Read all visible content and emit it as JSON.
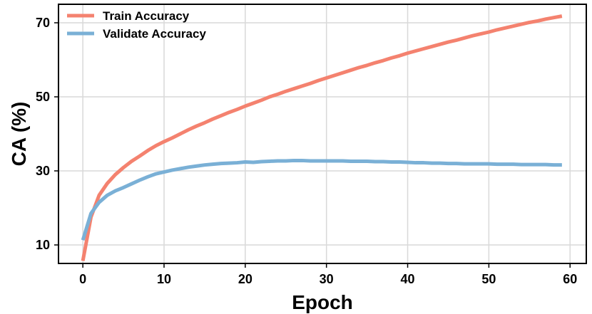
{
  "chart_data": {
    "type": "line",
    "title": "",
    "xlabel": "Epoch",
    "ylabel": "CA (%)",
    "xlim": [
      -3,
      62
    ],
    "ylim": [
      5,
      75
    ],
    "xticks": [
      0,
      10,
      20,
      30,
      40,
      50,
      60
    ],
    "yticks": [
      10,
      30,
      50,
      70
    ],
    "grid": true,
    "legend_position": "top-left",
    "x": [
      0,
      1,
      2,
      3,
      4,
      5,
      6,
      7,
      8,
      9,
      10,
      11,
      12,
      13,
      14,
      15,
      16,
      17,
      18,
      19,
      20,
      21,
      22,
      23,
      24,
      25,
      26,
      27,
      28,
      29,
      30,
      31,
      32,
      33,
      34,
      35,
      36,
      37,
      38,
      39,
      40,
      41,
      42,
      43,
      44,
      45,
      46,
      47,
      48,
      49,
      50,
      51,
      52,
      53,
      54,
      55,
      56,
      57,
      58,
      59
    ],
    "series": [
      {
        "name": "Train Accuracy",
        "color": "#f4826f",
        "values": [
          5.7,
          17.5,
          23.4,
          26.6,
          29.0,
          30.9,
          32.6,
          34.0,
          35.5,
          36.8,
          37.9,
          38.9,
          40.0,
          41.1,
          42.1,
          43.0,
          44.0,
          44.9,
          45.8,
          46.6,
          47.5,
          48.3,
          49.1,
          50.0,
          50.7,
          51.5,
          52.2,
          52.9,
          53.6,
          54.4,
          55.1,
          55.8,
          56.5,
          57.2,
          57.9,
          58.5,
          59.2,
          59.8,
          60.5,
          61.1,
          61.8,
          62.4,
          63.0,
          63.6,
          64.2,
          64.8,
          65.3,
          65.9,
          66.5,
          67.0,
          67.5,
          68.1,
          68.6,
          69.1,
          69.6,
          70.1,
          70.5,
          71.0,
          71.4,
          71.8
        ]
      },
      {
        "name": "Validate Accuracy",
        "color": "#7ab0d6",
        "values": [
          11.3,
          18.5,
          21.5,
          23.4,
          24.6,
          25.5,
          26.5,
          27.5,
          28.4,
          29.2,
          29.7,
          30.2,
          30.6,
          31.0,
          31.3,
          31.6,
          31.8,
          32.0,
          32.1,
          32.2,
          32.4,
          32.3,
          32.5,
          32.6,
          32.7,
          32.7,
          32.8,
          32.8,
          32.7,
          32.7,
          32.7,
          32.7,
          32.7,
          32.6,
          32.6,
          32.6,
          32.5,
          32.5,
          32.4,
          32.4,
          32.3,
          32.2,
          32.2,
          32.1,
          32.1,
          32.0,
          32.0,
          31.9,
          31.9,
          31.9,
          31.9,
          31.8,
          31.8,
          31.8,
          31.7,
          31.7,
          31.7,
          31.7,
          31.6,
          31.6
        ]
      }
    ]
  }
}
